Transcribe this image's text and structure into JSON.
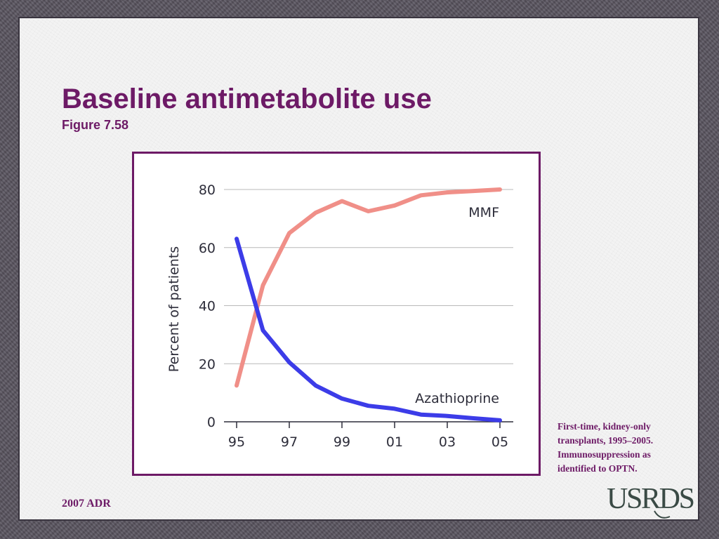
{
  "slide": {
    "title": "Baseline antimetabolite use",
    "subtitle": "Figure 7.58",
    "note": "First-time, kidney-only transplants, 1995–2005. Immunosuppression as identified to OPTN.",
    "footer": "2007 ADR",
    "logo_text": "USRDS"
  },
  "colors": {
    "title": "#6d1a66",
    "mmf": "#f08f88",
    "azathioprine": "#3c3ce8",
    "grid": "#b8b8b8",
    "frame": "#6d1a66"
  },
  "chart_data": {
    "type": "line",
    "x": [
      1995,
      1996,
      1997,
      1998,
      1999,
      2000,
      2001,
      2002,
      2003,
      2004,
      2005
    ],
    "xticks": [
      "95",
      "97",
      "99",
      "01",
      "03",
      "05"
    ],
    "xtick_values": [
      1995,
      1997,
      1999,
      2001,
      2003,
      2005
    ],
    "ylabel": "Percent of patients",
    "xlabel": "",
    "ylim": [
      0,
      80
    ],
    "yticks": [
      "0",
      "20",
      "40",
      "60",
      "80"
    ],
    "ytick_values": [
      0,
      20,
      40,
      60,
      80
    ],
    "grid": true,
    "series": [
      {
        "name": "MMF",
        "color": "#f08f88",
        "values": [
          12.5,
          47,
          65,
          72,
          76,
          72.5,
          74.5,
          78,
          79,
          79.5,
          80
        ]
      },
      {
        "name": "Azathioprine",
        "color": "#3c3ce8",
        "values": [
          63,
          31.5,
          20.5,
          12.5,
          8,
          5.5,
          4.5,
          2.5,
          2,
          1.2,
          0.5
        ]
      }
    ]
  }
}
